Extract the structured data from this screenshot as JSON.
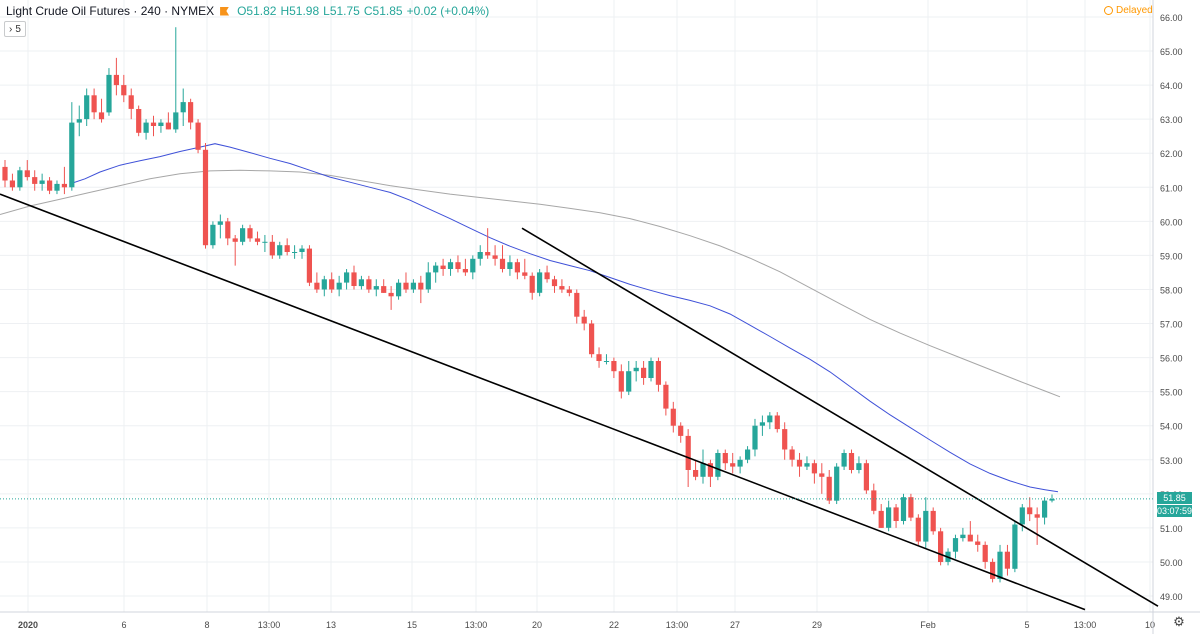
{
  "header": {
    "symbol": "Light Crude Oil Futures · 240 · NYMEX",
    "open": "O51.82",
    "high": "H51.98",
    "low": "L51.75",
    "close": "C51.85",
    "change": "+0.02 (+0.04%)"
  },
  "indicator_toggle": {
    "arrow": "›",
    "count": "5"
  },
  "status": {
    "label": "Delayed"
  },
  "last_price": {
    "price": "51.85",
    "countdown": "03:07:59"
  },
  "colors": {
    "up": "#26a69a",
    "down": "#ef5350",
    "ma_fast": "#3f51d8",
    "ma_slow": "#a7a7a7",
    "trendline": "#000000",
    "grid": "#eef0f3",
    "axis_text": "#4a4a4a"
  },
  "icons": {
    "settings": "gear-icon",
    "delayed": "clock-icon",
    "flag": "flag-icon"
  },
  "chart_data": {
    "type": "candlestick",
    "ylim": [
      48.6,
      66.4
    ],
    "y_ticks": [
      "49.00",
      "50.00",
      "51.00",
      "52.00",
      "53.00",
      "54.00",
      "55.00",
      "56.00",
      "57.00",
      "58.00",
      "59.00",
      "60.00",
      "61.00",
      "62.00",
      "63.00",
      "64.00",
      "65.00",
      "66.00"
    ],
    "x_ticks": [
      "2020",
      "6",
      "8",
      "13:00",
      "13",
      "15",
      "13:00",
      "20",
      "22",
      "13:00",
      "27",
      "29",
      "Feb",
      "5",
      "13:00",
      "10"
    ],
    "grid": true,
    "candles": [
      [
        61.6,
        61.8,
        61.0,
        61.2
      ],
      [
        61.2,
        61.4,
        60.9,
        61.0
      ],
      [
        61.0,
        61.6,
        60.9,
        61.5
      ],
      [
        61.5,
        61.8,
        61.2,
        61.3
      ],
      [
        61.3,
        61.5,
        60.9,
        61.1
      ],
      [
        61.1,
        61.4,
        60.9,
        61.2
      ],
      [
        61.2,
        61.3,
        60.8,
        60.9
      ],
      [
        60.9,
        61.2,
        60.8,
        61.1
      ],
      [
        61.1,
        61.6,
        60.8,
        61.0
      ],
      [
        61.0,
        63.5,
        60.9,
        62.9
      ],
      [
        62.9,
        63.4,
        62.5,
        63.0
      ],
      [
        63.0,
        63.9,
        62.8,
        63.7
      ],
      [
        63.7,
        63.9,
        63.0,
        63.2
      ],
      [
        63.2,
        63.6,
        62.9,
        63.0
      ],
      [
        63.2,
        64.5,
        63.1,
        64.3
      ],
      [
        64.3,
        64.8,
        63.7,
        64.0
      ],
      [
        64.0,
        64.3,
        63.5,
        63.7
      ],
      [
        63.7,
        63.9,
        63.0,
        63.3
      ],
      [
        63.3,
        63.4,
        62.5,
        62.6
      ],
      [
        62.6,
        63.0,
        62.4,
        62.9
      ],
      [
        62.9,
        63.1,
        62.5,
        62.8
      ],
      [
        62.8,
        63.0,
        62.6,
        62.9
      ],
      [
        62.9,
        63.2,
        62.7,
        62.7
      ],
      [
        62.7,
        65.7,
        62.6,
        63.2
      ],
      [
        63.2,
        63.9,
        62.8,
        63.5
      ],
      [
        63.5,
        63.6,
        62.7,
        62.9
      ],
      [
        62.9,
        63.0,
        62.0,
        62.1
      ],
      [
        62.1,
        62.3,
        59.2,
        59.3
      ],
      [
        59.3,
        60.0,
        59.2,
        59.9
      ],
      [
        59.9,
        60.2,
        59.5,
        60.0
      ],
      [
        60.0,
        60.1,
        59.3,
        59.5
      ],
      [
        59.5,
        59.6,
        58.7,
        59.4
      ],
      [
        59.4,
        59.9,
        59.3,
        59.8
      ],
      [
        59.8,
        59.9,
        59.4,
        59.5
      ],
      [
        59.5,
        59.7,
        59.3,
        59.4
      ],
      [
        59.4,
        59.6,
        59.1,
        59.4
      ],
      [
        59.4,
        59.6,
        58.9,
        59.0
      ],
      [
        59.0,
        59.4,
        58.9,
        59.3
      ],
      [
        59.3,
        59.5,
        59.0,
        59.1
      ],
      [
        59.1,
        59.3,
        58.9,
        59.1
      ],
      [
        59.1,
        59.3,
        58.9,
        59.2
      ],
      [
        59.2,
        59.3,
        58.1,
        58.2
      ],
      [
        58.2,
        58.5,
        57.9,
        58.0
      ],
      [
        58.0,
        58.4,
        57.8,
        58.3
      ],
      [
        58.3,
        58.5,
        57.9,
        58.0
      ],
      [
        58.0,
        58.4,
        57.8,
        58.2
      ],
      [
        58.2,
        58.6,
        58.0,
        58.5
      ],
      [
        58.5,
        58.7,
        58.0,
        58.1
      ],
      [
        58.1,
        58.4,
        58.0,
        58.3
      ],
      [
        58.3,
        58.4,
        57.9,
        58.0
      ],
      [
        58.0,
        58.3,
        57.8,
        58.1
      ],
      [
        58.1,
        58.3,
        57.9,
        57.9
      ],
      [
        57.9,
        58.1,
        57.4,
        57.8
      ],
      [
        57.8,
        58.3,
        57.7,
        58.2
      ],
      [
        58.2,
        58.5,
        57.9,
        58.0
      ],
      [
        58.0,
        58.3,
        57.9,
        58.2
      ],
      [
        58.2,
        58.4,
        57.6,
        58.0
      ],
      [
        58.0,
        58.8,
        57.9,
        58.5
      ],
      [
        58.5,
        58.8,
        58.2,
        58.7
      ],
      [
        58.7,
        58.9,
        58.4,
        58.6
      ],
      [
        58.6,
        58.9,
        58.4,
        58.8
      ],
      [
        58.8,
        59.0,
        58.5,
        58.6
      ],
      [
        58.6,
        58.9,
        58.4,
        58.5
      ],
      [
        58.5,
        59.0,
        58.3,
        58.9
      ],
      [
        58.9,
        59.3,
        58.7,
        59.1
      ],
      [
        59.1,
        59.8,
        58.9,
        59.0
      ],
      [
        59.0,
        59.3,
        58.7,
        58.9
      ],
      [
        58.9,
        59.3,
        58.5,
        58.6
      ],
      [
        58.6,
        59.0,
        58.4,
        58.8
      ],
      [
        58.8,
        58.9,
        58.3,
        58.5
      ],
      [
        58.5,
        58.9,
        58.3,
        58.4
      ],
      [
        58.4,
        58.5,
        57.7,
        57.9
      ],
      [
        57.9,
        58.6,
        57.8,
        58.5
      ],
      [
        58.5,
        58.7,
        58.2,
        58.3
      ],
      [
        58.3,
        58.4,
        57.9,
        58.1
      ],
      [
        58.1,
        58.3,
        57.9,
        58.0
      ],
      [
        58.0,
        58.1,
        57.8,
        57.9
      ],
      [
        57.9,
        58.0,
        57.0,
        57.2
      ],
      [
        57.2,
        57.4,
        56.8,
        57.0
      ],
      [
        57.0,
        57.1,
        56.0,
        56.1
      ],
      [
        56.1,
        56.3,
        55.7,
        55.9
      ],
      [
        55.9,
        56.1,
        55.8,
        55.9
      ],
      [
        55.9,
        56.0,
        55.4,
        55.6
      ],
      [
        55.6,
        55.8,
        54.8,
        55.0
      ],
      [
        55.0,
        55.9,
        54.9,
        55.6
      ],
      [
        55.6,
        55.9,
        55.3,
        55.7
      ],
      [
        55.7,
        55.9,
        55.2,
        55.4
      ],
      [
        55.4,
        56.0,
        55.3,
        55.9
      ],
      [
        55.9,
        56.0,
        55.0,
        55.2
      ],
      [
        55.2,
        55.3,
        54.3,
        54.5
      ],
      [
        54.5,
        54.7,
        53.8,
        54.0
      ],
      [
        54.0,
        54.1,
        53.5,
        53.7
      ],
      [
        53.7,
        53.9,
        52.2,
        52.7
      ],
      [
        52.7,
        53.0,
        52.4,
        52.5
      ],
      [
        52.5,
        53.3,
        52.3,
        52.9
      ],
      [
        52.9,
        53.0,
        52.2,
        52.5
      ],
      [
        52.5,
        53.3,
        52.4,
        53.2
      ],
      [
        53.2,
        53.3,
        52.7,
        52.9
      ],
      [
        52.9,
        53.2,
        52.6,
        52.8
      ],
      [
        52.8,
        53.1,
        52.6,
        53.0
      ],
      [
        53.0,
        53.4,
        52.9,
        53.3
      ],
      [
        53.3,
        54.2,
        53.1,
        54.0
      ],
      [
        54.0,
        54.3,
        53.7,
        54.1
      ],
      [
        54.1,
        54.4,
        53.9,
        54.3
      ],
      [
        54.3,
        54.4,
        53.8,
        53.9
      ],
      [
        53.9,
        54.1,
        53.0,
        53.3
      ],
      [
        53.3,
        53.4,
        52.8,
        53.0
      ],
      [
        53.0,
        53.2,
        52.5,
        52.8
      ],
      [
        52.8,
        53.1,
        52.7,
        52.9
      ],
      [
        52.9,
        53.0,
        52.3,
        52.6
      ],
      [
        52.6,
        52.9,
        52.0,
        52.5
      ],
      [
        52.5,
        52.7,
        51.7,
        51.8
      ],
      [
        51.8,
        52.9,
        51.7,
        52.8
      ],
      [
        52.8,
        53.3,
        52.7,
        53.2
      ],
      [
        53.2,
        53.3,
        52.6,
        52.7
      ],
      [
        52.7,
        53.1,
        52.6,
        52.9
      ],
      [
        52.9,
        53.0,
        52.0,
        52.1
      ],
      [
        52.1,
        52.3,
        51.4,
        51.5
      ],
      [
        51.5,
        51.7,
        51.0,
        51.0
      ],
      [
        51.0,
        51.8,
        50.9,
        51.6
      ],
      [
        51.6,
        51.7,
        51.0,
        51.2
      ],
      [
        51.2,
        52.0,
        51.1,
        51.9
      ],
      [
        51.9,
        52.0,
        51.2,
        51.3
      ],
      [
        51.3,
        51.4,
        50.5,
        50.6
      ],
      [
        50.6,
        51.9,
        50.4,
        51.5
      ],
      [
        51.5,
        51.6,
        50.8,
        50.9
      ],
      [
        50.9,
        51.0,
        49.9,
        50.0
      ],
      [
        50.0,
        50.4,
        49.9,
        50.3
      ],
      [
        50.3,
        50.8,
        50.1,
        50.7
      ],
      [
        50.7,
        51.0,
        50.6,
        50.8
      ],
      [
        50.8,
        51.2,
        50.6,
        50.6
      ],
      [
        50.6,
        50.8,
        50.3,
        50.5
      ],
      [
        50.5,
        50.6,
        49.8,
        50.0
      ],
      [
        50.0,
        50.1,
        49.4,
        49.5
      ],
      [
        49.5,
        50.5,
        49.4,
        50.3
      ],
      [
        50.3,
        50.5,
        49.6,
        49.8
      ],
      [
        49.8,
        51.2,
        49.7,
        51.1
      ],
      [
        51.1,
        51.7,
        50.9,
        51.6
      ],
      [
        51.6,
        51.9,
        51.2,
        51.4
      ],
      [
        51.4,
        51.6,
        50.5,
        51.3
      ],
      [
        51.3,
        51.9,
        51.1,
        51.8
      ],
      [
        51.8,
        51.98,
        51.75,
        51.85
      ]
    ],
    "moving_averages": [
      {
        "values": [
          [
            70,
            61.1
          ],
          [
            85,
            61.25
          ],
          [
            100,
            61.45
          ],
          [
            120,
            61.65
          ],
          [
            140,
            61.78
          ],
          [
            160,
            61.9
          ],
          [
            180,
            62.05
          ],
          [
            200,
            62.18
          ],
          [
            215,
            62.28
          ],
          [
            230,
            62.18
          ],
          [
            250,
            62.02
          ],
          [
            270,
            61.85
          ],
          [
            290,
            61.7
          ],
          [
            310,
            61.5
          ],
          [
            330,
            61.3
          ],
          [
            350,
            61.15
          ],
          [
            370,
            61.0
          ],
          [
            390,
            60.85
          ],
          [
            410,
            60.62
          ],
          [
            430,
            60.35
          ],
          [
            450,
            60.08
          ],
          [
            470,
            59.8
          ],
          [
            490,
            59.52
          ],
          [
            510,
            59.27
          ],
          [
            530,
            59.05
          ],
          [
            550,
            58.85
          ],
          [
            570,
            58.7
          ],
          [
            590,
            58.55
          ],
          [
            610,
            58.35
          ],
          [
            630,
            58.15
          ],
          [
            650,
            57.98
          ],
          [
            670,
            57.82
          ],
          [
            690,
            57.68
          ],
          [
            710,
            57.52
          ],
          [
            730,
            57.28
          ],
          [
            750,
            56.95
          ],
          [
            770,
            56.62
          ],
          [
            790,
            56.28
          ],
          [
            810,
            55.95
          ],
          [
            830,
            55.58
          ],
          [
            850,
            55.15
          ],
          [
            870,
            54.72
          ],
          [
            890,
            54.32
          ],
          [
            910,
            53.95
          ],
          [
            930,
            53.58
          ],
          [
            950,
            53.22
          ],
          [
            970,
            52.88
          ],
          [
            990,
            52.6
          ],
          [
            1010,
            52.38
          ],
          [
            1030,
            52.2
          ],
          [
            1045,
            52.12
          ],
          [
            1058,
            52.06
          ]
        ]
      },
      {
        "values": [
          [
            0,
            60.2
          ],
          [
            30,
            60.45
          ],
          [
            60,
            60.65
          ],
          [
            90,
            60.85
          ],
          [
            120,
            61.05
          ],
          [
            150,
            61.25
          ],
          [
            180,
            61.4
          ],
          [
            210,
            61.48
          ],
          [
            240,
            61.5
          ],
          [
            270,
            61.48
          ],
          [
            300,
            61.45
          ],
          [
            330,
            61.35
          ],
          [
            360,
            61.2
          ],
          [
            390,
            61.05
          ],
          [
            420,
            60.92
          ],
          [
            450,
            60.8
          ],
          [
            480,
            60.7
          ],
          [
            510,
            60.6
          ],
          [
            540,
            60.5
          ],
          [
            570,
            60.38
          ],
          [
            600,
            60.25
          ],
          [
            630,
            60.08
          ],
          [
            660,
            59.85
          ],
          [
            690,
            59.58
          ],
          [
            720,
            59.28
          ],
          [
            750,
            58.92
          ],
          [
            780,
            58.52
          ],
          [
            810,
            58.05
          ],
          [
            840,
            57.58
          ],
          [
            870,
            57.12
          ],
          [
            900,
            56.72
          ],
          [
            930,
            56.35
          ],
          [
            960,
            56.0
          ],
          [
            990,
            55.65
          ],
          [
            1020,
            55.3
          ],
          [
            1045,
            55.02
          ],
          [
            1060,
            54.85
          ]
        ]
      }
    ],
    "trendlines": [
      [
        [
          0,
          60.8
        ],
        [
          1085,
          48.6
        ]
      ],
      [
        [
          522,
          59.8
        ],
        [
          1158,
          48.7
        ]
      ]
    ],
    "last_price_line": 51.85
  }
}
